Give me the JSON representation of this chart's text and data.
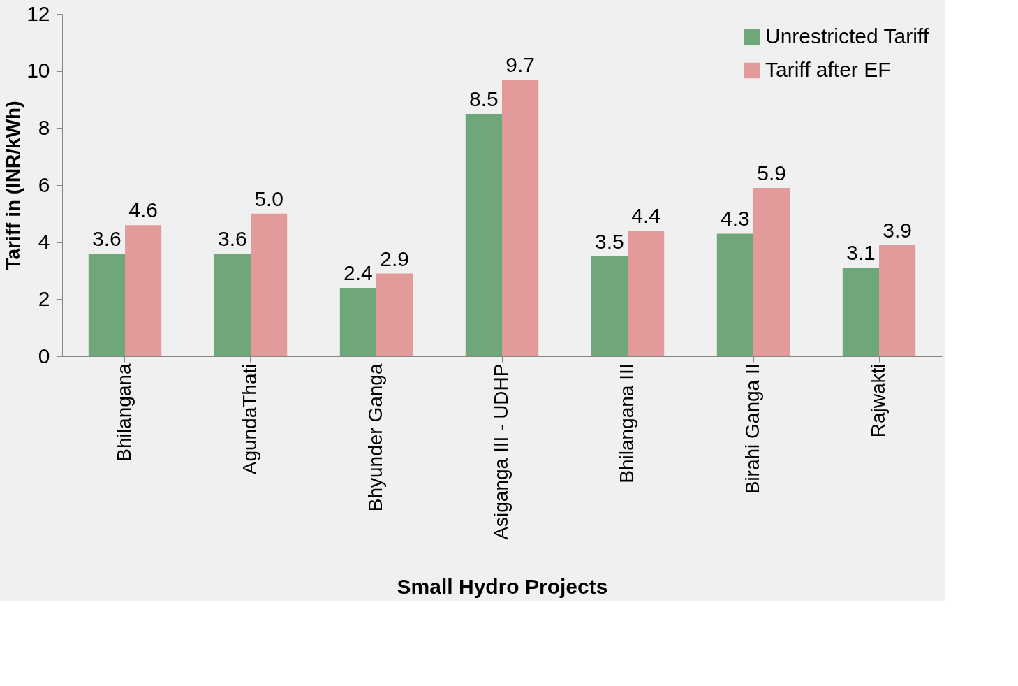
{
  "chart_data": {
    "type": "bar",
    "xlabel": "Small Hydro Projects",
    "ylabel": "Tariff in (INR/kWh)",
    "categories": [
      "Bhilangana",
      "AgundaThati",
      "Bhyunder Ganga",
      "Asiganga III - UDHP",
      "Bhilangana III",
      "Birahi Ganga II",
      "Rajwakti"
    ],
    "series": [
      {
        "name": "Unrestricted Tariff",
        "color": "#70a77a",
        "values": [
          3.6,
          3.6,
          2.4,
          8.5,
          3.5,
          4.3,
          3.1
        ]
      },
      {
        "name": "Tariff after EF",
        "color": "#e39a9a",
        "values": [
          4.6,
          5.0,
          2.9,
          9.7,
          4.4,
          5.9,
          3.9
        ]
      }
    ],
    "value_labels": [
      [
        "3.6",
        "3.6",
        "2.4",
        "8.5",
        "3.5",
        "4.3",
        "3.1"
      ],
      [
        "4.6",
        "5.0",
        "2.9",
        "9.7",
        "4.4",
        "5.9",
        "3.9"
      ]
    ],
    "ylim": [
      0,
      12
    ],
    "yticks": [
      0,
      2,
      4,
      6,
      8,
      10,
      12
    ],
    "legend": "top right"
  }
}
